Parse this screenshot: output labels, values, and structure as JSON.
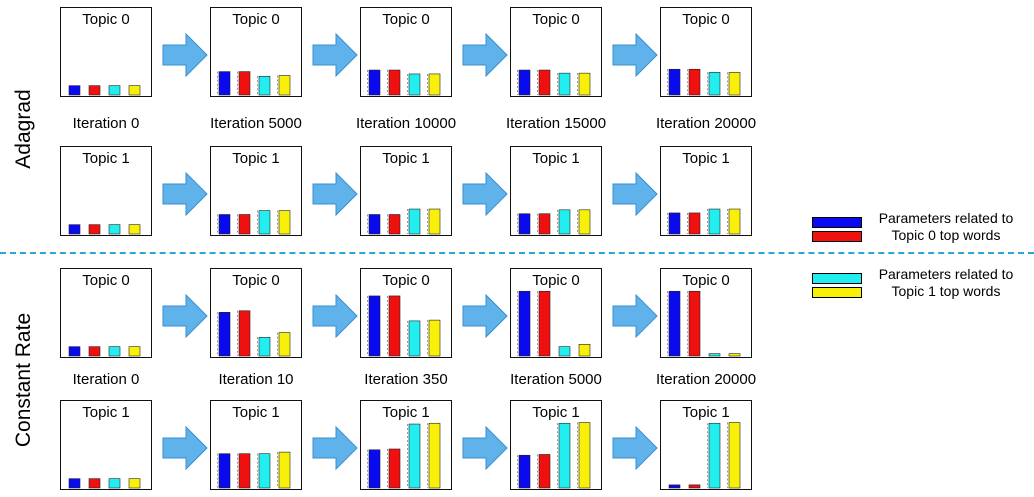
{
  "colors": {
    "topic0_a": "#0a0af0",
    "topic0_b": "#f01010",
    "topic1_a": "#22eef0",
    "topic1_b": "#f8f008",
    "arrow_fill": "#5fb2ea",
    "arrow_stroke": "#3a8fcf",
    "divider": "#2aa5d8"
  },
  "row_labels": {
    "adagrad": "Adagrad",
    "constant": "Constant Rate"
  },
  "legend": {
    "topic0_text": "Parameters related to Topic 0 top words",
    "topic1_text": "Parameters related to Topic 1 top words"
  },
  "sections": [
    {
      "name": "Adagrad",
      "iterations": [
        "Iteration 0",
        "Iteration 5000",
        "Iteration 10000",
        "Iteration 15000",
        "Iteration 20000"
      ],
      "rows": [
        {
          "topic_label": "Topic 0",
          "panels": [
            [
              0.12,
              0.12,
              0.12,
              0.12
            ],
            [
              0.3,
              0.3,
              0.24,
              0.25
            ],
            [
              0.32,
              0.32,
              0.27,
              0.27
            ],
            [
              0.32,
              0.32,
              0.28,
              0.28
            ],
            [
              0.33,
              0.33,
              0.29,
              0.29
            ]
          ]
        },
        {
          "topic_label": "Topic 1",
          "panels": [
            [
              0.12,
              0.12,
              0.12,
              0.12
            ],
            [
              0.25,
              0.25,
              0.3,
              0.3
            ],
            [
              0.25,
              0.25,
              0.32,
              0.32
            ],
            [
              0.26,
              0.26,
              0.31,
              0.31
            ],
            [
              0.27,
              0.27,
              0.32,
              0.32
            ]
          ]
        }
      ]
    },
    {
      "name": "Constant Rate",
      "iterations": [
        "Iteration 0",
        "Iteration 10",
        "Iteration 350",
        "Iteration 5000",
        "Iteration 20000"
      ],
      "rows": [
        {
          "topic_label": "Topic 0",
          "panels": [
            [
              0.12,
              0.12,
              0.12,
              0.12
            ],
            [
              0.56,
              0.58,
              0.24,
              0.3
            ],
            [
              0.77,
              0.77,
              0.45,
              0.46
            ],
            [
              0.83,
              0.83,
              0.12,
              0.15
            ],
            [
              0.83,
              0.83,
              0.03,
              0.03
            ]
          ]
        },
        {
          "topic_label": "Topic 1",
          "panels": [
            [
              0.12,
              0.12,
              0.12,
              0.12
            ],
            [
              0.44,
              0.44,
              0.44,
              0.46
            ],
            [
              0.49,
              0.5,
              0.82,
              0.83
            ],
            [
              0.42,
              0.43,
              0.83,
              0.84
            ],
            [
              0.04,
              0.04,
              0.83,
              0.84
            ]
          ]
        }
      ]
    }
  ]
}
